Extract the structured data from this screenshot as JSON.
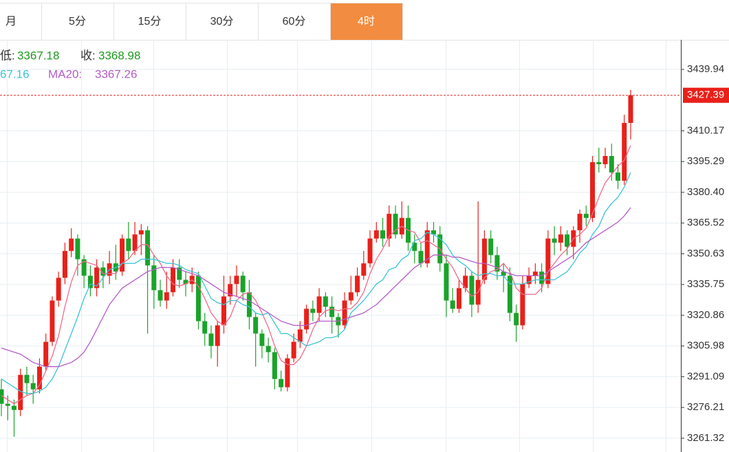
{
  "tabs": [
    {
      "label": "月"
    },
    {
      "label": "5分"
    },
    {
      "label": "15分"
    },
    {
      "label": "30分"
    },
    {
      "label": "60分"
    },
    {
      "label": "4时",
      "active": true
    }
  ],
  "info": {
    "low_label": "低:",
    "low": "3367.18",
    "close_label": "收:",
    "close": "3368.98",
    "ma_a_value": "67.16",
    "ma_b_label": "MA20:",
    "ma_b_value": "3367.26"
  },
  "chart_data": {
    "type": "candlestick",
    "up_color": "#e8201a",
    "down_color": "#1aa32a",
    "grid": true,
    "ylim": [
      3254.64,
      3454.24
    ],
    "yticks": [
      3261.32,
      3276.21,
      3291.09,
      3305.98,
      3320.86,
      3335.75,
      3350.63,
      3365.52,
      {
        "value": 3380.4,
        "label": "3380.40"
      },
      3395.29,
      3410.17,
      3439.94
    ],
    "open": [
      3285,
      3278,
      3277,
      3275,
      3292,
      3288,
      3285,
      3296,
      3308,
      3328,
      3339,
      3352,
      3358,
      3348,
      3340,
      3334,
      3344,
      3340,
      3346,
      3342,
      3358,
      3352,
      3360,
      3362,
      3345,
      3333,
      3328,
      3332,
      3344,
      3338,
      3336,
      3340,
      3318,
      3312,
      3306,
      3316,
      3330,
      3336,
      3340,
      3332,
      3320,
      3312,
      3306,
      3303,
      3290,
      3286,
      3300,
      3308,
      3314,
      3324,
      3322,
      3330,
      3325,
      3320,
      3316,
      3328,
      3332,
      3340,
      3346,
      3358,
      3362,
      3358,
      3370,
      3360,
      3368,
      3356,
      3352,
      3346,
      3362,
      3360,
      3346,
      3328,
      3324,
      3334,
      3340,
      3326,
      3338,
      3358,
      3350,
      3342,
      3340,
      3322,
      3316,
      3336,
      3340,
      3342,
      3336,
      3358,
      3356,
      3360,
      3354,
      3362,
      3370,
      3368,
      3395,
      3394,
      3398,
      3390,
      3386,
      3414
    ],
    "high": [
      3290,
      3282,
      3280,
      3295,
      3296,
      3292,
      3300,
      3312,
      3330,
      3342,
      3356,
      3363,
      3360,
      3350,
      3345,
      3348,
      3347,
      3352,
      3355,
      3360,
      3366,
      3366,
      3365,
      3364,
      3350,
      3338,
      3342,
      3348,
      3348,
      3342,
      3344,
      3342,
      3322,
      3316,
      3318,
      3340,
      3340,
      3345,
      3342,
      3338,
      3322,
      3314,
      3310,
      3305,
      3294,
      3302,
      3312,
      3318,
      3326,
      3328,
      3334,
      3332,
      3330,
      3322,
      3332,
      3340,
      3344,
      3352,
      3362,
      3366,
      3368,
      3374,
      3374,
      3376,
      3374,
      3360,
      3356,
      3366,
      3366,
      3364,
      3350,
      3334,
      3338,
      3344,
      3342,
      3376,
      3362,
      3362,
      3354,
      3346,
      3344,
      3326,
      3340,
      3344,
      3346,
      3346,
      3362,
      3364,
      3364,
      3362,
      3364,
      3372,
      3374,
      3398,
      3402,
      3402,
      3404,
      3394,
      3418,
      3430
    ],
    "low": [
      3272,
      3270,
      3262,
      3272,
      3282,
      3278,
      3283,
      3294,
      3306,
      3325,
      3336,
      3349,
      3340,
      3334,
      3330,
      3330,
      3334,
      3336,
      3338,
      3340,
      3348,
      3350,
      3350,
      3312,
      3324,
      3325,
      3324,
      3330,
      3334,
      3330,
      3332,
      3314,
      3306,
      3300,
      3296,
      3312,
      3326,
      3330,
      3328,
      3314,
      3296,
      3300,
      3298,
      3285,
      3284,
      3284,
      3298,
      3305,
      3312,
      3318,
      3318,
      3320,
      3312,
      3310,
      3314,
      3326,
      3330,
      3338,
      3344,
      3356,
      3354,
      3354,
      3358,
      3358,
      3352,
      3346,
      3344,
      3344,
      3356,
      3342,
      3320,
      3322,
      3322,
      3332,
      3320,
      3322,
      3336,
      3346,
      3338,
      3332,
      3318,
      3308,
      3314,
      3334,
      3336,
      3332,
      3334,
      3350,
      3352,
      3350,
      3348,
      3356,
      3364,
      3366,
      3390,
      3392,
      3386,
      3382,
      3384,
      3406
    ],
    "close": [
      3278,
      3277,
      3275,
      3292,
      3288,
      3285,
      3296,
      3308,
      3328,
      3339,
      3352,
      3358,
      3348,
      3340,
      3334,
      3344,
      3340,
      3346,
      3342,
      3358,
      3352,
      3360,
      3362,
      3345,
      3333,
      3328,
      3332,
      3344,
      3338,
      3336,
      3340,
      3318,
      3312,
      3306,
      3316,
      3330,
      3336,
      3340,
      3332,
      3320,
      3312,
      3306,
      3303,
      3290,
      3286,
      3300,
      3308,
      3314,
      3324,
      3322,
      3330,
      3325,
      3320,
      3316,
      3328,
      3332,
      3340,
      3346,
      3358,
      3362,
      3358,
      3370,
      3360,
      3368,
      3356,
      3352,
      3346,
      3362,
      3360,
      3346,
      3328,
      3324,
      3334,
      3340,
      3326,
      3338,
      3358,
      3350,
      3342,
      3340,
      3322,
      3316,
      3336,
      3340,
      3342,
      3336,
      3358,
      3356,
      3360,
      3354,
      3362,
      3370,
      3368,
      3395,
      3394,
      3398,
      3390,
      3386,
      3414,
      3427.39
    ],
    "ma": [
      {
        "color": "#f06a8c",
        "values": [
          3282,
          3280,
          3278,
          3280,
          3282,
          3283,
          3287,
          3294,
          3301,
          3311,
          3325,
          3337,
          3345,
          3347,
          3346,
          3345,
          3341,
          3341,
          3341,
          3346,
          3348,
          3352,
          3355,
          3355,
          3350,
          3346,
          3340,
          3336,
          3335,
          3336,
          3338,
          3335,
          3329,
          3322,
          3318,
          3316,
          3320,
          3328,
          3331,
          3332,
          3328,
          3322,
          3315,
          3306,
          3299,
          3297,
          3297,
          3300,
          3306,
          3314,
          3320,
          3323,
          3324,
          3323,
          3324,
          3324,
          3327,
          3332,
          3341,
          3348,
          3353,
          3359,
          3362,
          3364,
          3362,
          3361,
          3356,
          3357,
          3355,
          3353,
          3348,
          3344,
          3338,
          3334,
          3330,
          3332,
          3339,
          3342,
          3343,
          3346,
          3342,
          3334,
          3331,
          3331,
          3331,
          3334,
          3342,
          3346,
          3350,
          3353,
          3358,
          3360,
          3363,
          3370,
          3378,
          3385,
          3389,
          3393,
          3396,
          3403
        ]
      },
      {
        "color": "#3cc3d6",
        "values": [
          3290,
          3288,
          3286,
          3284,
          3283,
          3283,
          3284,
          3286,
          3290,
          3296,
          3304,
          3312,
          3320,
          3329,
          3336,
          3335,
          3339,
          3343,
          3344,
          3346,
          3346,
          3346,
          3348,
          3348,
          3348,
          3347,
          3346,
          3346,
          3345,
          3343,
          3342,
          3341,
          3335,
          3329,
          3327,
          3326,
          3328,
          3328,
          3326,
          3325,
          3322,
          3321,
          3322,
          3317,
          3312,
          3312,
          3310,
          3308,
          3306,
          3307,
          3308,
          3310,
          3310,
          3311,
          3314,
          3322,
          3325,
          3328,
          3332,
          3336,
          3338,
          3343,
          3344,
          3348,
          3350,
          3357,
          3358,
          3361,
          3360,
          3358,
          3355,
          3350,
          3347,
          3345,
          3342,
          3340,
          3341,
          3341,
          3340,
          3340,
          3336,
          3336,
          3336,
          3337,
          3338,
          3338,
          3338,
          3338,
          3340,
          3342,
          3346,
          3351,
          3354,
          3360,
          3364,
          3371,
          3375,
          3378,
          3383,
          3390
        ]
      },
      {
        "color": "#b45cc8",
        "values": [
          3305,
          3304,
          3303,
          3302,
          3300,
          3298,
          3297,
          3296,
          3296,
          3296,
          3297,
          3298,
          3300,
          3303,
          3308,
          3314,
          3320,
          3326,
          3330,
          3334,
          3336,
          3338,
          3340,
          3342,
          3343,
          3344,
          3344,
          3344,
          3343,
          3342,
          3341,
          3340,
          3338,
          3336,
          3334,
          3332,
          3331,
          3330,
          3329,
          3328,
          3326,
          3324,
          3322,
          3320,
          3318,
          3317,
          3316,
          3316,
          3316,
          3317,
          3318,
          3318,
          3318,
          3318,
          3319,
          3320,
          3321,
          3322,
          3324,
          3326,
          3329,
          3332,
          3335,
          3338,
          3341,
          3344,
          3346,
          3348,
          3350,
          3350,
          3350,
          3349,
          3349,
          3348,
          3347,
          3346,
          3346,
          3345,
          3344,
          3342,
          3341,
          3340,
          3340,
          3340,
          3340,
          3340,
          3342,
          3344,
          3346,
          3348,
          3350,
          3353,
          3356,
          3358,
          3360,
          3362,
          3364,
          3366,
          3369,
          3373
        ]
      }
    ]
  }
}
